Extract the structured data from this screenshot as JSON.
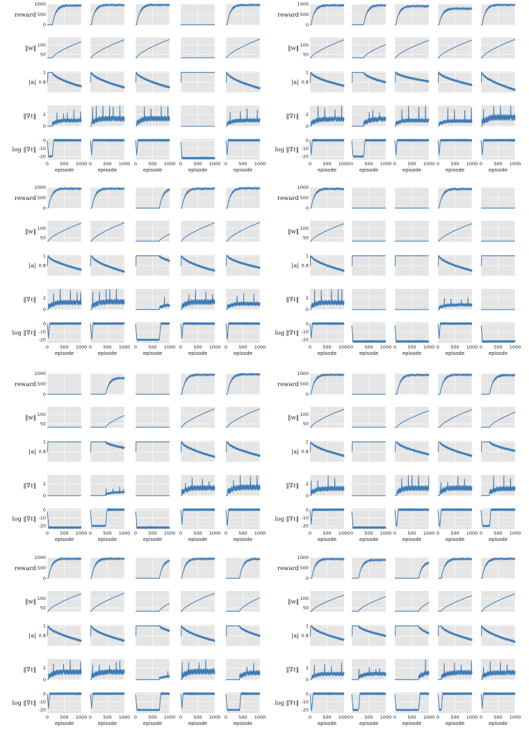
{
  "figure": {
    "metrics": [
      {
        "key": "reward",
        "label": "reward",
        "ylim": [
          0,
          1000
        ],
        "ticks": [
          0,
          500,
          1000
        ]
      },
      {
        "key": "w",
        "label": "‖w‖",
        "ylim": [
          30,
          140
        ],
        "ticks": [
          50,
          100
        ]
      },
      {
        "key": "a",
        "label": "|a|",
        "ylim": [
          0.6,
          1.02
        ],
        "ticks": [
          0.8,
          1.0
        ]
      },
      {
        "key": "g",
        "label": "‖∇ℓ‖",
        "ylim": [
          0,
          3.5
        ],
        "ticks": [
          0,
          2
        ]
      },
      {
        "key": "lg",
        "label": "log ‖∇ℓ‖",
        "ylim": [
          -24,
          2
        ],
        "ticks": [
          -20,
          -10,
          0
        ]
      }
    ],
    "xlabel": "episode",
    "xticks": [
      0,
      500,
      1000
    ],
    "xlim": [
      0,
      1000
    ],
    "line_color": "#3a7ab6",
    "panel_bg": "#e5e5e5",
    "grid_color": "#ffffff"
  },
  "chart_data": {
    "type": "line",
    "x": "episode 0–1000",
    "groups": [
      {
        "id": "A",
        "runs": [
          {
            "status": "success",
            "onset": 150,
            "reward_plateau": 950,
            "w_final": 118,
            "a_final": 0.72,
            "g_level": 1.0,
            "g_spike": 2.0
          },
          {
            "status": "success",
            "onset": 30,
            "reward_plateau": 980,
            "w_final": 128,
            "a_final": 0.7,
            "g_level": 1.3,
            "g_spike": 3.0
          },
          {
            "status": "success",
            "onset": 30,
            "reward_plateau": 980,
            "w_final": 130,
            "a_final": 0.7,
            "g_level": 1.3,
            "g_spike": 2.5
          },
          {
            "status": "flat",
            "onset": null,
            "reward_plateau": 10,
            "w_final": 33,
            "a_final": 1.0,
            "g_level": 0.0,
            "g_spike": 0.0
          },
          {
            "status": "success",
            "onset": 30,
            "reward_plateau": 980,
            "w_final": 132,
            "a_final": 0.68,
            "g_level": 1.0,
            "g_spike": 2.0
          }
        ]
      },
      {
        "id": "B",
        "runs": [
          {
            "status": "success",
            "onset": 30,
            "reward_plateau": 960,
            "w_final": 128,
            "a_final": 0.73,
            "g_level": 1.2,
            "g_spike": 2.5
          },
          {
            "status": "success",
            "onset": 350,
            "reward_plateau": 960,
            "w_final": 103,
            "a_final": 0.8,
            "g_level": 1.2,
            "g_spike": 2.0
          },
          {
            "status": "success",
            "onset": 30,
            "reward_plateau": 920,
            "w_final": 125,
            "a_final": 0.82,
            "g_level": 1.0,
            "g_spike": 3.0
          },
          {
            "status": "success",
            "onset": 30,
            "reward_plateau": 800,
            "w_final": 126,
            "a_final": 0.75,
            "g_level": 0.9,
            "g_spike": 2.5
          },
          {
            "status": "success",
            "onset": 30,
            "reward_plateau": 980,
            "w_final": 130,
            "a_final": 0.65,
            "g_level": 1.5,
            "g_spike": 3.2
          }
        ]
      },
      {
        "id": "C",
        "runs": [
          {
            "status": "success",
            "onset": 30,
            "reward_plateau": 960,
            "w_final": 128,
            "a_final": 0.72,
            "g_level": 1.2,
            "g_spike": 2.5
          },
          {
            "status": "success",
            "onset": 40,
            "reward_plateau": 960,
            "w_final": 130,
            "a_final": 0.68,
            "g_level": 1.3,
            "g_spike": 2.8
          },
          {
            "status": "late",
            "onset": 700,
            "reward_plateau": 950,
            "w_final": 70,
            "a_final": 0.9,
            "g_level": 0.8,
            "g_spike": 2.0
          },
          {
            "status": "success",
            "onset": 30,
            "reward_plateau": 960,
            "w_final": 130,
            "a_final": 0.7,
            "g_level": 1.3,
            "g_spike": 2.0
          },
          {
            "status": "success",
            "onset": 40,
            "reward_plateau": 980,
            "w_final": 132,
            "a_final": 0.76,
            "g_level": 1.0,
            "g_spike": 2.0
          }
        ]
      },
      {
        "id": "D",
        "runs": [
          {
            "status": "success",
            "onset": 30,
            "reward_plateau": 950,
            "w_final": 125,
            "a_final": 0.7,
            "g_level": 1.2,
            "g_spike": 3.0
          },
          {
            "status": "flat",
            "onset": null,
            "reward_plateau": 10,
            "w_final": 33,
            "a_final": 1.0,
            "g_level": 0.0,
            "g_spike": 0.0
          },
          {
            "status": "flat",
            "onset": null,
            "reward_plateau": 10,
            "w_final": 33,
            "a_final": 1.0,
            "g_level": 0.0,
            "g_spike": 0.0
          },
          {
            "status": "success",
            "onset": 30,
            "reward_plateau": 940,
            "w_final": 125,
            "a_final": 0.7,
            "g_level": 0.8,
            "g_spike": 1.5
          },
          {
            "status": "flat",
            "onset": null,
            "reward_plateau": 10,
            "w_final": 33,
            "a_final": 1.0,
            "g_level": 0.0,
            "g_spike": 0.0
          }
        ]
      },
      {
        "id": "E",
        "runs": [
          {
            "status": "flat",
            "onset": null,
            "reward_plateau": 10,
            "w_final": 33,
            "a_final": 1.0,
            "g_level": 0.0,
            "g_spike": 0.0
          },
          {
            "status": "late",
            "onset": 450,
            "reward_plateau": 800,
            "w_final": 95,
            "a_final": 0.88,
            "g_level": 0.6,
            "g_spike": 1.0
          },
          {
            "status": "flat",
            "onset": null,
            "reward_plateau": 10,
            "w_final": 33,
            "a_final": 1.0,
            "g_level": 0.0,
            "g_spike": 0.0
          },
          {
            "status": "success",
            "onset": 30,
            "reward_plateau": 960,
            "w_final": 130,
            "a_final": 0.7,
            "g_level": 1.3,
            "g_spike": 2.0
          },
          {
            "status": "success",
            "onset": 40,
            "reward_plateau": 980,
            "w_final": 130,
            "a_final": 0.72,
            "g_level": 1.4,
            "g_spike": 2.5
          }
        ]
      },
      {
        "id": "F",
        "runs": [
          {
            "status": "success",
            "onset": 30,
            "reward_plateau": 960,
            "w_final": 128,
            "a_final": 0.72,
            "g_level": 1.2,
            "g_spike": 2.5
          },
          {
            "status": "flat",
            "onset": null,
            "reward_plateau": 10,
            "w_final": 33,
            "a_final": 1.0,
            "g_level": 0.0,
            "g_spike": 0.0
          },
          {
            "status": "success",
            "onset": 60,
            "reward_plateau": 950,
            "w_final": 120,
            "a_final": 0.75,
            "g_level": 1.3,
            "g_spike": 2.8
          },
          {
            "status": "success",
            "onset": 60,
            "reward_plateau": 960,
            "w_final": 126,
            "a_final": 0.72,
            "g_level": 1.3,
            "g_spike": 2.0
          },
          {
            "status": "success",
            "onset": 250,
            "reward_plateau": 940,
            "w_final": 112,
            "a_final": 0.82,
            "g_level": 1.2,
            "g_spike": 2.5
          }
        ]
      },
      {
        "id": "G",
        "runs": [
          {
            "status": "success",
            "onset": 30,
            "reward_plateau": 960,
            "w_final": 125,
            "a_final": 0.7,
            "g_level": 1.3,
            "g_spike": 2.2
          },
          {
            "status": "success",
            "onset": 30,
            "reward_plateau": 960,
            "w_final": 128,
            "a_final": 0.7,
            "g_level": 1.3,
            "g_spike": 2.0
          },
          {
            "status": "late",
            "onset": 700,
            "reward_plateau": 900,
            "w_final": 75,
            "a_final": 0.9,
            "g_level": 0.6,
            "g_spike": 1.0
          },
          {
            "status": "success",
            "onset": 30,
            "reward_plateau": 960,
            "w_final": 128,
            "a_final": 0.7,
            "g_level": 1.4,
            "g_spike": 2.2
          },
          {
            "status": "late",
            "onset": 400,
            "reward_plateau": 950,
            "w_final": 105,
            "a_final": 0.8,
            "g_level": 1.2,
            "g_spike": 1.8
          }
        ]
      },
      {
        "id": "H",
        "runs": [
          {
            "status": "success",
            "onset": 50,
            "reward_plateau": 950,
            "w_final": 118,
            "a_final": 0.72,
            "g_level": 1.0,
            "g_spike": 2.0
          },
          {
            "status": "late",
            "onset": 200,
            "reward_plateau": 900,
            "w_final": 110,
            "a_final": 0.8,
            "g_level": 1.0,
            "g_spike": 1.5
          },
          {
            "status": "late",
            "onset": 700,
            "reward_plateau": 800,
            "w_final": 80,
            "a_final": 0.85,
            "g_level": 1.2,
            "g_spike": 3.5
          },
          {
            "status": "success",
            "onset": 100,
            "reward_plateau": 950,
            "w_final": 115,
            "a_final": 0.72,
            "g_level": 1.2,
            "g_spike": 2.0
          },
          {
            "status": "success",
            "onset": 30,
            "reward_plateau": 960,
            "w_final": 125,
            "a_final": 0.68,
            "g_level": 1.2,
            "g_spike": 2.2
          }
        ]
      }
    ]
  }
}
